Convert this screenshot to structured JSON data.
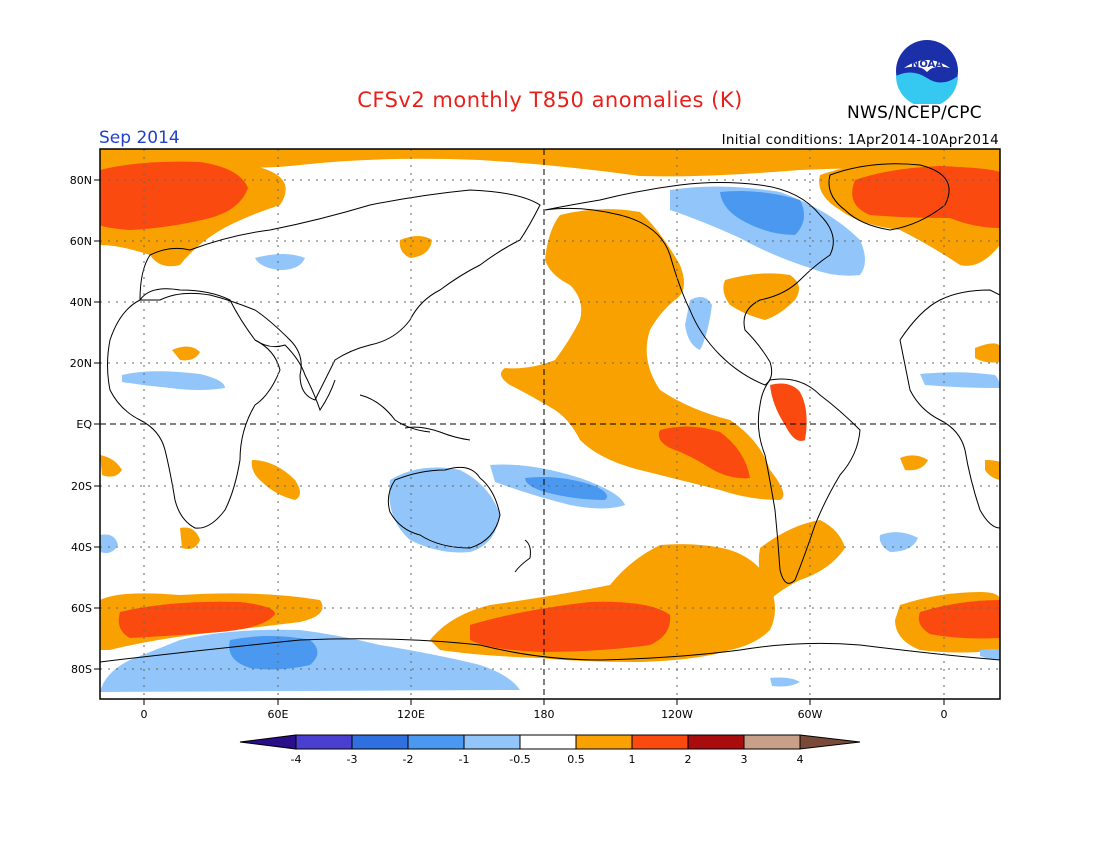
{
  "header": {
    "title": "CFSv2 monthly T850 anomalies (K)",
    "title_color": "#e8201c",
    "period": "Sep 2014",
    "period_color": "#2040d0",
    "initial_conditions": "Initial conditions: 1Apr2014-10Apr2014",
    "agency": "NWS/NCEP/CPC",
    "logo_text": "NOAA"
  },
  "map": {
    "lat_labels": [
      "80N",
      "60N",
      "40N",
      "20N",
      "EQ",
      "20S",
      "40S",
      "60S",
      "80S"
    ],
    "lon_labels": [
      "0",
      "60E",
      "120E",
      "180",
      "120W",
      "60W",
      "0"
    ]
  },
  "colorbar": {
    "labels": [
      "-4",
      "-3",
      "-2",
      "-1",
      "-0.5",
      "0.5",
      "1",
      "2",
      "3",
      "4"
    ],
    "colors": [
      "#2a0e8a",
      "#4a3fd0",
      "#2f6fe0",
      "#4b98f0",
      "#92c6fa",
      "#ffffff",
      "#f9a100",
      "#fa4a10",
      "#a80c0c",
      "#c8a08a",
      "#7a4a38"
    ]
  },
  "palette": {
    "warm1": "#f9a100",
    "warm2": "#fa4a10",
    "cool1": "#92c6fa",
    "cool2": "#4b98f0"
  }
}
